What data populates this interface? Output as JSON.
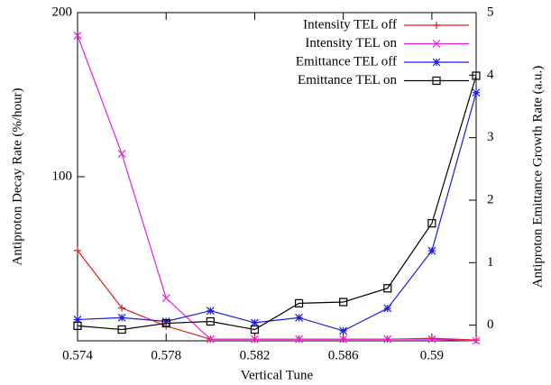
{
  "chart_data": {
    "type": "line",
    "x_label": "Vertical Tune",
    "y_label": "Antiproton Decay Rate (%/hour)",
    "y2_label": "Antiproton Emittance Growth Rate (a.u.)",
    "x": [
      0.574,
      0.576,
      0.578,
      0.58,
      0.582,
      0.584,
      0.586,
      0.588,
      0.59,
      0.592
    ],
    "xlim": [
      0.574,
      0.592
    ],
    "xticks": [
      0.574,
      0.578,
      0.582,
      0.586,
      0.59
    ],
    "ylim": [
      0,
      200
    ],
    "yticks": [
      100,
      200
    ],
    "y2lim": [
      -0.25,
      5
    ],
    "y2ticks": [
      0,
      1,
      2,
      3,
      4,
      5
    ],
    "legend": "upper right",
    "series": [
      {
        "name": "Intensity TEL off",
        "color": "#e41a1c",
        "marker": "plus",
        "axis": "y",
        "values": [
          55,
          20,
          9,
          1,
          1,
          1,
          1,
          1,
          1.5,
          0.5
        ]
      },
      {
        "name": "Intensity TEL on",
        "color": "#e020e0",
        "marker": "cross",
        "axis": "y",
        "values": [
          186,
          114,
          26,
          1,
          1,
          1,
          1,
          1,
          1,
          0
        ]
      },
      {
        "name": "Emittance TEL off",
        "color": "#1a1ae0",
        "marker": "star",
        "axis": "y2",
        "values": [
          0.09,
          0.12,
          0.06,
          0.23,
          0.04,
          0.12,
          -0.09,
          0.27,
          1.19,
          3.72
        ]
      },
      {
        "name": "Emittance TEL on",
        "color": "#000000",
        "marker": "square",
        "axis": "y2",
        "values": [
          -0.01,
          -0.07,
          0.03,
          0.06,
          -0.07,
          0.35,
          0.37,
          0.59,
          1.63,
          3.99
        ]
      }
    ]
  }
}
